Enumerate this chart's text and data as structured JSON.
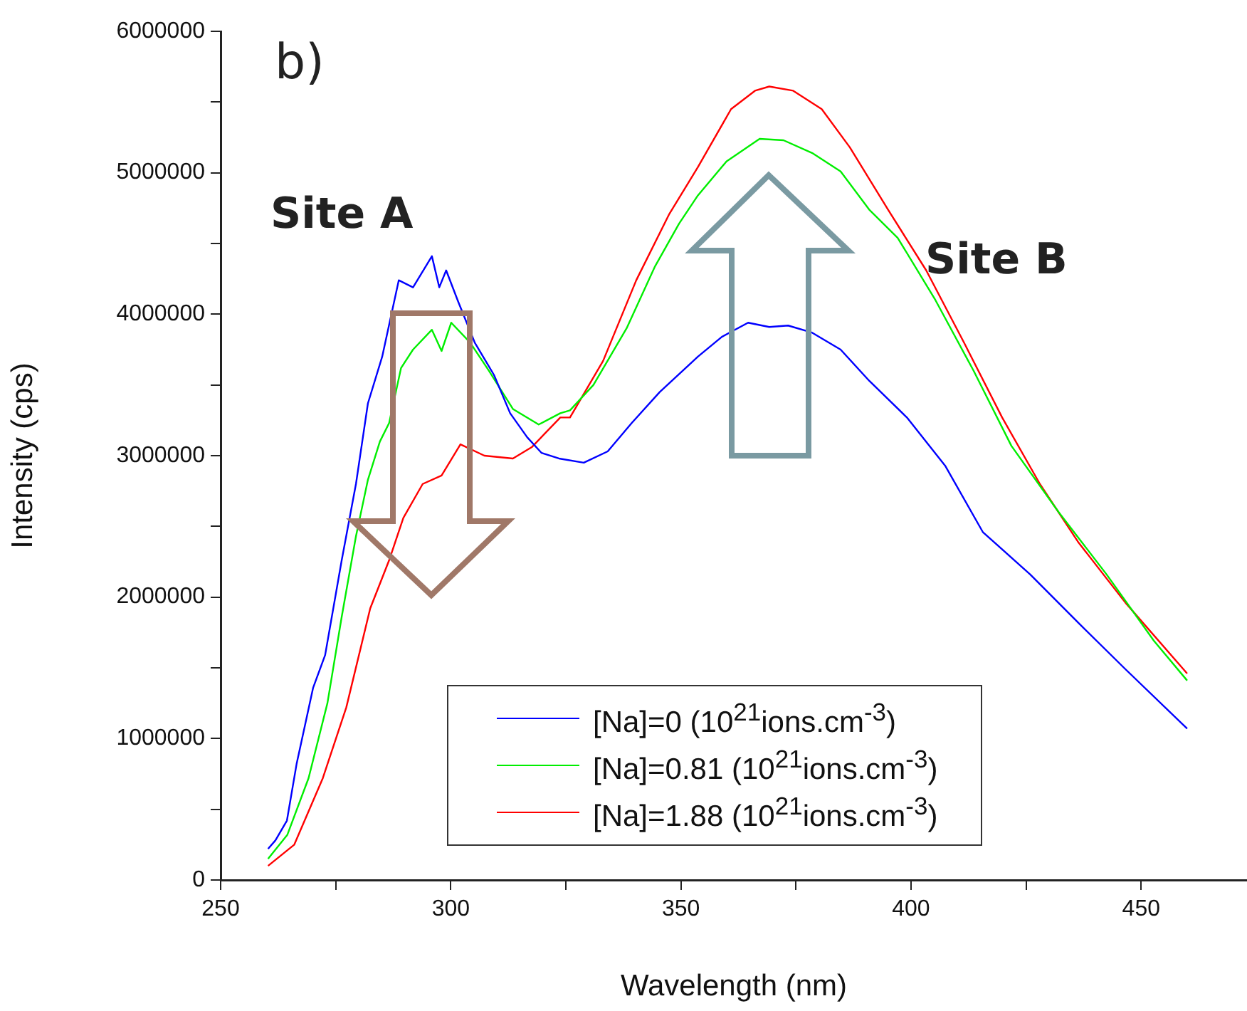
{
  "chart_data": {
    "type": "line",
    "xlabel": "Wavelength (nm)",
    "ylabel": "Intensity (cps)",
    "xlim": [
      250,
      473
    ],
    "ylim": [
      0,
      6000000
    ],
    "xticks": [
      250,
      {
        "value": 275,
        "label": null
      },
      300,
      {
        "value": 325,
        "label": null
      },
      350,
      {
        "value": 375,
        "label": null
      },
      400,
      {
        "value": 425,
        "label": null
      },
      450
    ],
    "yticks": [
      0,
      {
        "value": 500000,
        "label": null
      },
      1000000,
      {
        "value": 1500000,
        "label": null
      },
      2000000,
      {
        "value": 2500000,
        "label": null
      },
      3000000,
      {
        "value": 3500000,
        "label": null
      },
      4000000,
      {
        "value": 4500000,
        "label": null
      },
      5000000,
      {
        "value": 5500000,
        "label": null
      },
      6000000
    ],
    "grid": false,
    "legend": "bottom",
    "marker": "none",
    "line_style": "solid",
    "annotations": [
      "b)",
      "Site A",
      "Site B"
    ],
    "series": [
      {
        "name": "[Na]=0 (10$^{21}$ions.cm$^{-3}$)",
        "color": "#0000ff",
        "x": [
          260.3,
          261.9,
          264.4,
          266.5,
          270.1,
          272.7,
          276.3,
          279.4,
          282,
          285.1,
          288.7,
          291.8,
          295.9,
          297.5,
          299,
          301.6,
          305.2,
          309.4,
          312.9,
          316.6,
          319.7,
          323.5,
          328.9,
          334.1,
          339.3,
          345.4,
          353.7,
          358.9,
          364.6,
          369.2,
          373.3,
          378.5,
          384.7,
          390.9,
          399.1,
          407.4,
          415.6,
          425.9,
          436.3,
          446.6,
          460
        ],
        "values": [
          220000,
          280000,
          420000,
          820000,
          1360000,
          1590000,
          2260000,
          2800000,
          3370000,
          3700000,
          4240000,
          4190000,
          4410000,
          4190000,
          4310000,
          4090000,
          3800000,
          3570000,
          3300000,
          3130000,
          3020000,
          2980000,
          2950000,
          3030000,
          3230000,
          3450000,
          3700000,
          3840000,
          3940000,
          3910000,
          3920000,
          3870000,
          3750000,
          3530000,
          3270000,
          2930000,
          2460000,
          2160000,
          1820000,
          1490000,
          1070000
        ]
      },
      {
        "name": "[Na]=0.81 (10$^{21}$ions.cm$^{-3}$)",
        "color": "#00ee00",
        "x": [
          260.3,
          264.5,
          269.1,
          273.2,
          276.3,
          279.4,
          282,
          284.6,
          286.6,
          289.2,
          291.8,
          295.9,
          298,
          300.1,
          304.2,
          308.3,
          313.5,
          319.1,
          323.8,
          325.9,
          331,
          338.2,
          344.4,
          349.6,
          353.7,
          359.9,
          367.1,
          372.3,
          378.5,
          384.7,
          390.9,
          397.1,
          405.3,
          413.6,
          421.8,
          432.1,
          442.5,
          452.8,
          460
        ],
        "values": [
          150000,
          320000,
          720000,
          1250000,
          1860000,
          2430000,
          2830000,
          3100000,
          3230000,
          3620000,
          3750000,
          3890000,
          3740000,
          3940000,
          3800000,
          3600000,
          3330000,
          3220000,
          3300000,
          3320000,
          3500000,
          3900000,
          4340000,
          4640000,
          4840000,
          5080000,
          5240000,
          5230000,
          5140000,
          5010000,
          4740000,
          4540000,
          4100000,
          3600000,
          3070000,
          2600000,
          2160000,
          1690000,
          1410000
        ]
      },
      {
        "name": "[Na]=1.88 (10$^{21}$ions.cm$^{-3}$)",
        "color": "#ff0000",
        "x": [
          260.3,
          266,
          272.2,
          277.3,
          282.5,
          286.6,
          289.7,
          293.9,
          298,
          302.1,
          307.3,
          313.5,
          317.6,
          323.8,
          325.9,
          333.1,
          340.3,
          347.5,
          353.7,
          360.9,
          366.1,
          369.2,
          374.4,
          380.6,
          386.7,
          395,
          403.3,
          411.5,
          419.8,
          428,
          436.3,
          446.6,
          460
        ],
        "values": [
          100000,
          250000,
          720000,
          1220000,
          1920000,
          2260000,
          2560000,
          2800000,
          2860000,
          3080000,
          3000000,
          2980000,
          3060000,
          3270000,
          3270000,
          3670000,
          4240000,
          4710000,
          5040000,
          5450000,
          5580000,
          5610000,
          5580000,
          5450000,
          5180000,
          4740000,
          4310000,
          3800000,
          3270000,
          2800000,
          2390000,
          1960000,
          1460000
        ]
      }
    ]
  }
}
